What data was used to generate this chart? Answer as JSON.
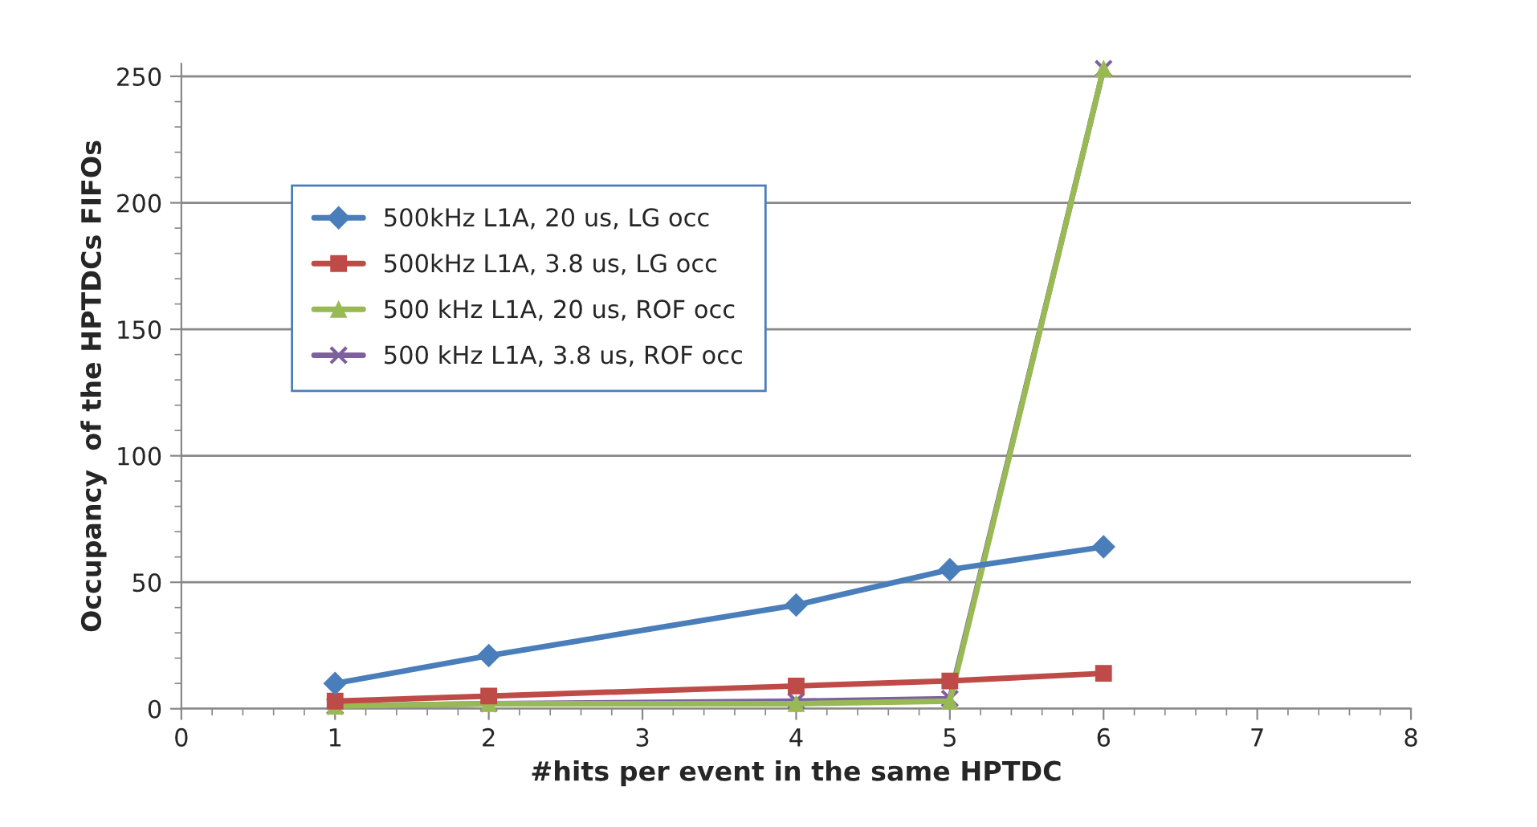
{
  "chart_data": {
    "type": "line",
    "xlabel": "#hits per event in the same HPTDC",
    "ylabel": "Occupancy  of the HPTDCs FIFOs",
    "x": [
      1,
      2,
      4,
      5,
      6
    ],
    "series": [
      {
        "name": "500kHz L1A, 20 us, LG occ",
        "color": "#4a7ebb",
        "marker": "diamond",
        "values": [
          10,
          21,
          41,
          55,
          64
        ]
      },
      {
        "name": "500kHz L1A, 3.8 us, LG occ",
        "color": "#be4b48",
        "marker": "square",
        "values": [
          3,
          5,
          9,
          11,
          14
        ]
      },
      {
        "name": "500 kHz L1A, 20 us, ROF occ",
        "color": "#98b954",
        "marker": "triangle",
        "values": [
          1,
          2,
          2,
          3,
          253
        ]
      },
      {
        "name": "500 kHz L1A, 3.8 us, ROF occ",
        "color": "#7d60a0",
        "marker": "cross",
        "values": [
          1,
          2,
          3,
          4,
          253
        ]
      }
    ],
    "xlim": [
      0,
      8
    ],
    "xticks": [
      0,
      1,
      2,
      3,
      4,
      5,
      6,
      7,
      8
    ],
    "ylim": [
      0,
      255
    ],
    "yticks": [
      0,
      50,
      100,
      150,
      200,
      250
    ],
    "grid": "y",
    "legend": "top left",
    "line_style": "solid"
  }
}
